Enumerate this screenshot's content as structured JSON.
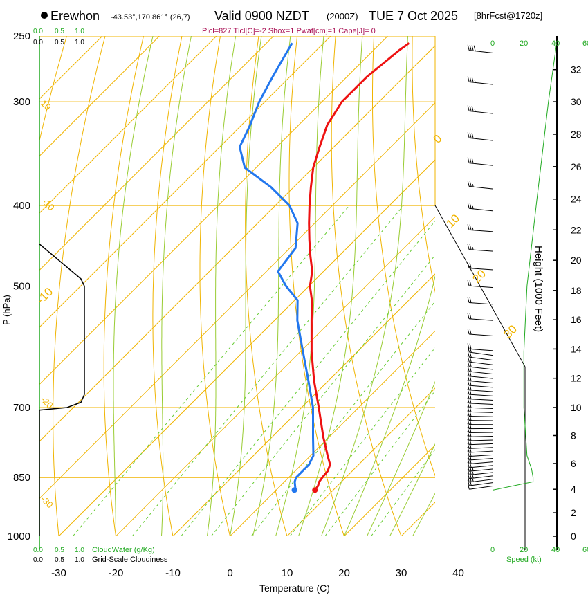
{
  "header": {
    "station": "Erewhon",
    "location": "-43.53°,170.861° (26,7)",
    "valid": "Valid 0900 NZDT",
    "utc": "(2000Z)",
    "date": "TUE 7 Oct 2025",
    "forecast": "[8hrFcst@1720z]",
    "params": "Plcl=827 Tlcl[C]=-2 Shox=1 Pwat[cm]=1 Cape[J]= 0"
  },
  "colors": {
    "temperature": "#ee1111",
    "dewpoint": "#2277ee",
    "isotherm": "#f0b400",
    "dry_adiabat": "#f0b400",
    "moist_adiabat": "#99cc33",
    "mixing_ratio": "#66cc33",
    "green_text": "#22aa22",
    "params_text": "#aa1155"
  },
  "chart_data": {
    "type": "skew-t",
    "title": "Valid 0900 NZDT (2000Z) TUE 7 Oct 2025",
    "xlabel": "Temperature (C)",
    "ylabel": "P (hPa)",
    "right_axis_label": "Height (1000 Feet)",
    "xlim": [
      -35,
      37
    ],
    "pressure_range_hpa": [
      1000,
      250
    ],
    "temperature_ticks": [
      "-30",
      "-20",
      "-10",
      "0",
      "10",
      "20",
      "30",
      "40"
    ],
    "pressure_ticks": [
      "250",
      "300",
      "400",
      "500",
      "700",
      "850",
      "1000"
    ],
    "height_ticks_kft": [
      "0",
      "2",
      "4",
      "6",
      "8",
      "10",
      "12",
      "14",
      "16",
      "18",
      "20",
      "22",
      "24",
      "26",
      "28",
      "30",
      "32"
    ],
    "height_of_pressure": {
      "pressure_hpa": [
        1000,
        850,
        700,
        500,
        400,
        300,
        250
      ],
      "height_kft": [
        0,
        5,
        10,
        18.3,
        23.6,
        30.0,
        34.1
      ]
    },
    "temperature_profile": {
      "name": "Temperature",
      "pressure_hpa": [
        880,
        870,
        860,
        850,
        835,
        820,
        800,
        760,
        700,
        650,
        600,
        550,
        520,
        500,
        480,
        460,
        440,
        420,
        400,
        380,
        360,
        340,
        320,
        300,
        290,
        280,
        270,
        260,
        255
      ],
      "temp_c": [
        6.8,
        6.6,
        6.1,
        5.9,
        5.7,
        5.0,
        3.0,
        -1.0,
        -7.0,
        -12.5,
        -18.0,
        -23.5,
        -27.0,
        -29.8,
        -32.0,
        -35.0,
        -38.0,
        -41.0,
        -44.0,
        -47.0,
        -50.0,
        -52.5,
        -55.0,
        -56.5,
        -56.5,
        -56.5,
        -56.0,
        -55.5,
        -55.0
      ]
    },
    "dewpoint_profile": {
      "name": "Dewpoint",
      "pressure_hpa": [
        880,
        875,
        860,
        850,
        830,
        820,
        800,
        760,
        700,
        650,
        600,
        550,
        520,
        500,
        480,
        450,
        420,
        400,
        380,
        360,
        340,
        320,
        300,
        280,
        270,
        260,
        255
      ],
      "dewpt_c": [
        3.2,
        3.0,
        1.8,
        1.3,
        1.3,
        1.3,
        0.5,
        -2.8,
        -8.0,
        -13.5,
        -19.5,
        -26.0,
        -29.5,
        -34.0,
        -38.0,
        -39.0,
        -43.0,
        -47.5,
        -54.0,
        -62.0,
        -66.5,
        -68.5,
        -71.0,
        -73.0,
        -74.0,
        -75.0,
        -75.5
      ]
    },
    "cloud": {
      "legend_water": "CloudWater (g/Kg)",
      "legend_cloudiness": "Grid-Scale Cloudiness",
      "ticks": [
        "0.0",
        "0.5",
        "1.0"
      ],
      "water_ticks": [
        "0.0",
        "0.5",
        "1.0"
      ],
      "cloudiness_profile": {
        "pressure_hpa": [
          1000,
          705,
          700,
          690,
          675,
          500,
          490,
          445
        ],
        "fraction": [
          0,
          0,
          0.4,
          0.6,
          0.65,
          0.65,
          0.6,
          0
        ]
      }
    },
    "wind": {
      "axis_label": "Speed (kt)",
      "speed_ticks": [
        "0",
        "20",
        "40",
        "60"
      ],
      "speed_profile": {
        "pressure_hpa": [
          880,
          860,
          850,
          830,
          800,
          700,
          600,
          500,
          400,
          300,
          250
        ],
        "speed_kt": [
          0,
          26,
          26,
          25,
          22,
          20,
          20,
          22,
          28,
          36,
          42
        ]
      }
    },
    "isotherm_labels": [
      "-10",
      "0",
      "10",
      "20",
      "30"
    ],
    "dry_adiabat_labels": [
      "10",
      "-10",
      "-20",
      "-30"
    ],
    "mixing_ratio_labels": [
      "1",
      "2",
      "3",
      "5",
      "8",
      "12",
      "20"
    ]
  }
}
